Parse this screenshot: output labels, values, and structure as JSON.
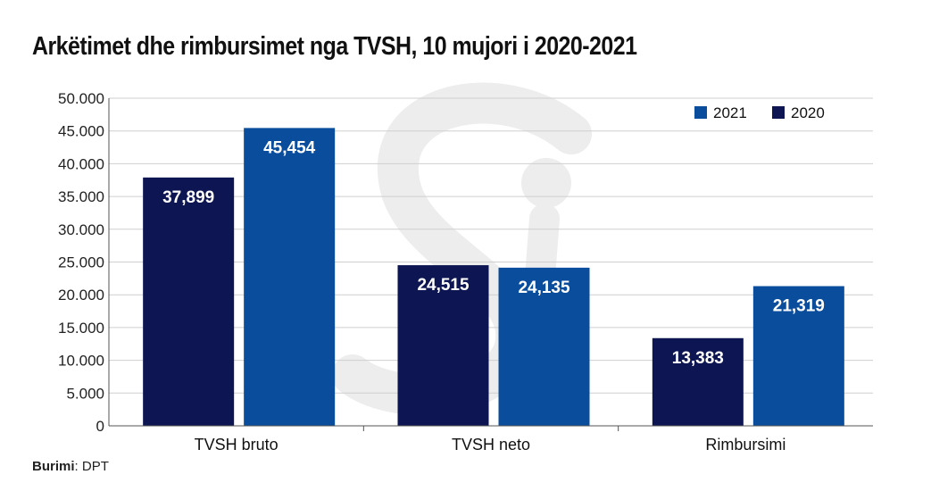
{
  "chart_data": {
    "type": "bar",
    "title": "Arkëtimet dhe rimbursimet nga TVSH, 10 mujori i 2020-2021",
    "categories": [
      "TVSH bruto",
      "TVSH neto",
      "Rimbursimi"
    ],
    "series": [
      {
        "name": "2020",
        "values": [
          37899,
          24515,
          13383
        ],
        "labels": [
          "37,899",
          "24,515",
          "13,383"
        ],
        "color": "#0d1652"
      },
      {
        "name": "2021",
        "values": [
          45454,
          24135,
          21319
        ],
        "labels": [
          "45,454",
          "24,135",
          "21,319"
        ],
        "color": "#0a4d9c"
      }
    ],
    "ylim": [
      0,
      50000
    ],
    "yticks": [
      0,
      5000,
      10000,
      15000,
      20000,
      25000,
      30000,
      35000,
      40000,
      45000,
      50000
    ],
    "ytick_labels": [
      "0",
      "5.000",
      "10.000",
      "15.000",
      "20.000",
      "25.000",
      "30.000",
      "35.000",
      "40.000",
      "45.000",
      "50.000"
    ],
    "legend_order": [
      "2021",
      "2020"
    ],
    "legend_position": "top-right",
    "grid": true,
    "xlabel": "",
    "ylabel": ""
  },
  "source": {
    "label": "Burimi",
    "value": "DPT"
  },
  "colors": {
    "grid": "#cfcfcf",
    "axis": "#555555",
    "label_text": "#ffffff",
    "watermark": "#ededed"
  }
}
